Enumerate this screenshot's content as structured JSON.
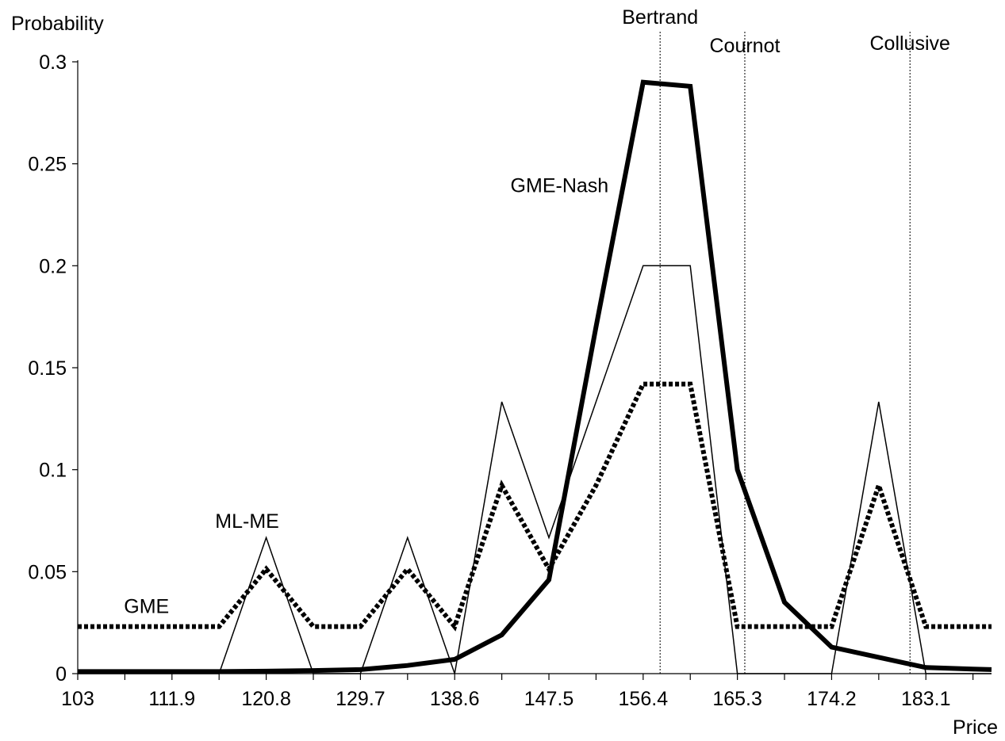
{
  "chart_data": {
    "type": "line",
    "xlabel": "Price",
    "ylabel": "Probability",
    "xlim": [
      103,
      189.3
    ],
    "ylim": [
      0,
      0.3
    ],
    "grid": false,
    "x_tick_labels": [
      "103",
      "111.9",
      "120.8",
      "129.7",
      "138.6",
      "147.5",
      "156.4",
      "165.3",
      "174.2",
      "183.1"
    ],
    "x_tick_values": [
      103,
      111.9,
      120.8,
      129.7,
      138.6,
      147.5,
      156.4,
      165.3,
      174.2,
      183.1
    ],
    "x_minor_tick_values": [
      107.45,
      116.35,
      125.25,
      134.15,
      143.05,
      151.95,
      160.85,
      169.75,
      178.65,
      187.55
    ],
    "y_tick_labels": [
      "0",
      "0.05",
      "0.1",
      "0.15",
      "0.2",
      "0.25",
      "0.3"
    ],
    "y_tick_values": [
      0,
      0.05,
      0.1,
      0.15,
      0.2,
      0.25,
      0.3
    ],
    "x": [
      103,
      107.45,
      111.9,
      116.35,
      120.8,
      125.25,
      129.7,
      134.15,
      138.6,
      143.05,
      147.5,
      151.95,
      156.4,
      160.85,
      165.3,
      169.75,
      174.2,
      178.65,
      183.1,
      187.55,
      189.3
    ],
    "series": [
      {
        "name": "GME-Nash",
        "style": "thick-solid",
        "color": "#000000",
        "values": [
          0.001,
          0.001,
          0.001,
          0.001,
          0.0012,
          0.0015,
          0.002,
          0.004,
          0.007,
          0.019,
          0.046,
          0.17,
          0.29,
          0.288,
          0.1,
          0.035,
          0.013,
          0.008,
          0.003,
          0.0022,
          0.002
        ]
      },
      {
        "name": "ML-ME",
        "style": "thin-solid",
        "color": "#000000",
        "values": [
          0,
          0,
          0,
          0,
          0.0667,
          0,
          0,
          0.0667,
          0,
          0.1333,
          0.0667,
          0.1333,
          0.2,
          0.2,
          0,
          0,
          0,
          0.1333,
          0,
          0,
          0
        ]
      },
      {
        "name": "GME",
        "style": "thick-dotted",
        "color": "#000000",
        "values": [
          0.0231,
          0.0231,
          0.0231,
          0.0231,
          0.0513,
          0.0231,
          0.0231,
          0.0513,
          0.0231,
          0.0923,
          0.0513,
          0.0923,
          0.142,
          0.142,
          0.0231,
          0.0231,
          0.0231,
          0.0923,
          0.0231,
          0.0231,
          0.0231
        ]
      }
    ],
    "reference_lines": [
      {
        "name": "Bertrand",
        "x": 158.0
      },
      {
        "name": "Cournot",
        "x": 166.0
      },
      {
        "name": "Collusive",
        "x": 181.6
      }
    ],
    "annotations": [
      {
        "text": "GME-Nash",
        "x": 148.5,
        "y": 0.236
      },
      {
        "text": "ML-ME",
        "x": 119.0,
        "y": 0.0715
      },
      {
        "text": "GME",
        "x": 109.5,
        "y": 0.0298
      }
    ]
  }
}
